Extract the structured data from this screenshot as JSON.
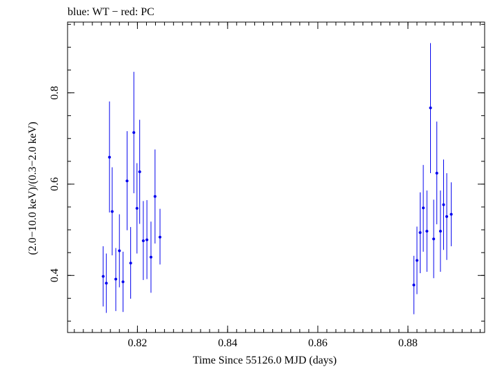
{
  "chart_data": {
    "type": "scatter",
    "title": "blue: WT − red: PC",
    "xlabel": "Time Since 55126.0 MJD (days)",
    "ylabel": "(2.0−10.0 keV)/(0.3−2.0 keV)",
    "xlim": [
      0.8045,
      0.897
    ],
    "ylim": [
      0.275,
      0.955
    ],
    "x_ticks": [
      {
        "value": 0.82,
        "label": "0.82"
      },
      {
        "value": 0.84,
        "label": "0.84"
      },
      {
        "value": 0.86,
        "label": "0.86"
      },
      {
        "value": 0.88,
        "label": "0.88"
      }
    ],
    "y_ticks": [
      {
        "value": 0.4,
        "label": "0.4"
      },
      {
        "value": 0.6,
        "label": "0.6"
      },
      {
        "value": 0.8,
        "label": "0.8"
      }
    ],
    "grid": false,
    "legend": "none",
    "series": [
      {
        "color": "#0000ee",
        "points": [
          {
            "x": 0.8124,
            "y": 0.398,
            "ylo": 0.332,
            "yhi": 0.464
          },
          {
            "x": 0.8131,
            "y": 0.383,
            "ylo": 0.318,
            "yhi": 0.448
          },
          {
            "x": 0.8138,
            "y": 0.659,
            "ylo": 0.538,
            "yhi": 0.781
          },
          {
            "x": 0.8144,
            "y": 0.54,
            "ylo": 0.444,
            "yhi": 0.637
          },
          {
            "x": 0.8152,
            "y": 0.392,
            "ylo": 0.322,
            "yhi": 0.46
          },
          {
            "x": 0.816,
            "y": 0.454,
            "ylo": 0.374,
            "yhi": 0.534
          },
          {
            "x": 0.8168,
            "y": 0.386,
            "ylo": 0.32,
            "yhi": 0.452
          },
          {
            "x": 0.8177,
            "y": 0.607,
            "ylo": 0.499,
            "yhi": 0.716
          },
          {
            "x": 0.8185,
            "y": 0.427,
            "ylo": 0.349,
            "yhi": 0.506
          },
          {
            "x": 0.8192,
            "y": 0.713,
            "ylo": 0.58,
            "yhi": 0.846
          },
          {
            "x": 0.8199,
            "y": 0.547,
            "ylo": 0.448,
            "yhi": 0.646
          },
          {
            "x": 0.8205,
            "y": 0.627,
            "ylo": 0.513,
            "yhi": 0.741
          },
          {
            "x": 0.8213,
            "y": 0.476,
            "ylo": 0.39,
            "yhi": 0.563
          },
          {
            "x": 0.8221,
            "y": 0.478,
            "ylo": 0.392,
            "yhi": 0.565
          },
          {
            "x": 0.823,
            "y": 0.44,
            "ylo": 0.362,
            "yhi": 0.518
          },
          {
            "x": 0.8239,
            "y": 0.573,
            "ylo": 0.47,
            "yhi": 0.676
          },
          {
            "x": 0.825,
            "y": 0.484,
            "ylo": 0.424,
            "yhi": 0.546
          },
          {
            "x": 0.8813,
            "y": 0.379,
            "ylo": 0.315,
            "yhi": 0.443
          },
          {
            "x": 0.882,
            "y": 0.433,
            "ylo": 0.359,
            "yhi": 0.507
          },
          {
            "x": 0.8827,
            "y": 0.494,
            "ylo": 0.405,
            "yhi": 0.582
          },
          {
            "x": 0.8834,
            "y": 0.548,
            "ylo": 0.452,
            "yhi": 0.642
          },
          {
            "x": 0.8842,
            "y": 0.497,
            "ylo": 0.408,
            "yhi": 0.586
          },
          {
            "x": 0.885,
            "y": 0.767,
            "ylo": 0.624,
            "yhi": 0.909
          },
          {
            "x": 0.8857,
            "y": 0.48,
            "ylo": 0.394,
            "yhi": 0.566
          },
          {
            "x": 0.8864,
            "y": 0.624,
            "ylo": 0.512,
            "yhi": 0.737
          },
          {
            "x": 0.8872,
            "y": 0.497,
            "ylo": 0.408,
            "yhi": 0.586
          },
          {
            "x": 0.8879,
            "y": 0.555,
            "ylo": 0.456,
            "yhi": 0.654
          },
          {
            "x": 0.8886,
            "y": 0.529,
            "ylo": 0.434,
            "yhi": 0.624
          },
          {
            "x": 0.8896,
            "y": 0.534,
            "ylo": 0.464,
            "yhi": 0.604
          }
        ]
      }
    ]
  }
}
